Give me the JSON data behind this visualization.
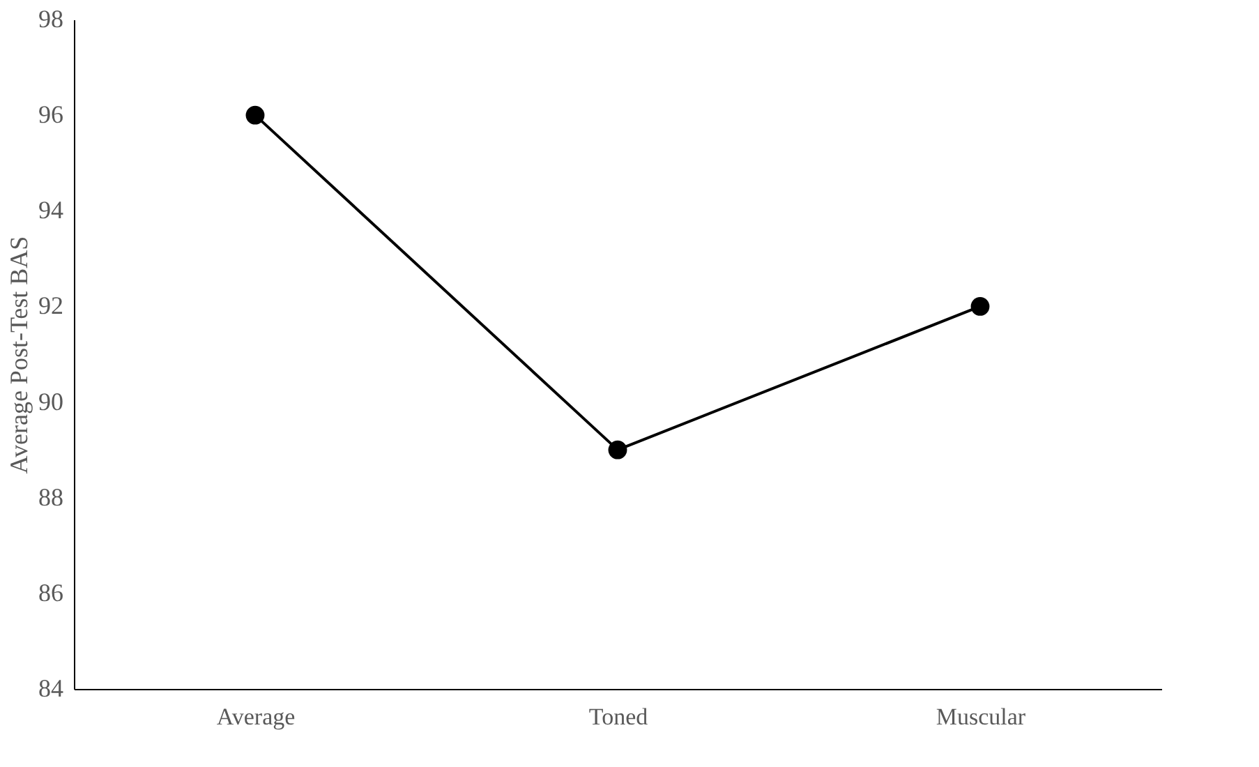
{
  "chart_data": {
    "type": "line",
    "categories": [
      "Average",
      "Toned",
      "Muscular"
    ],
    "series": [
      {
        "color": "#000000",
        "values": [
          96,
          89,
          92
        ]
      }
    ],
    "ylabel": "Average Post-Test BAS",
    "ylim": [
      84,
      98
    ],
    "yticks": [
      84,
      86,
      88,
      90,
      92,
      94,
      96,
      98
    ],
    "grid": false,
    "legend": false,
    "marker": "circle",
    "line_style": "solid"
  }
}
